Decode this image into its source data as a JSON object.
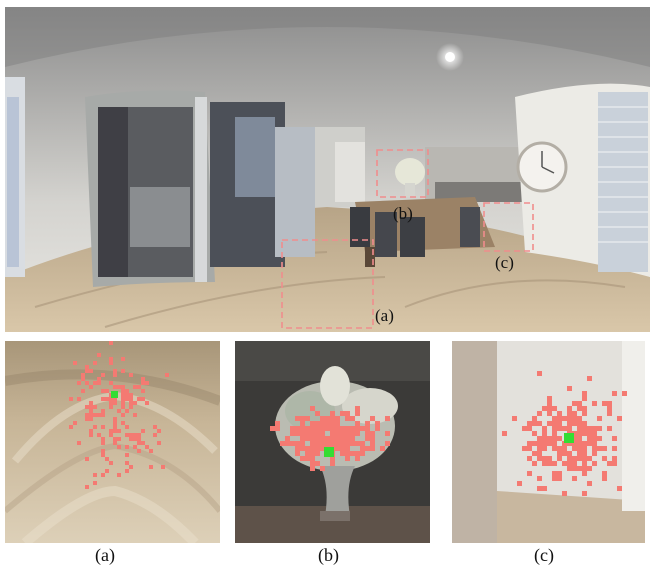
{
  "figure": {
    "panorama_labels": {
      "a": "(a)",
      "b": "(b)",
      "c": "(c)"
    },
    "subfigure_captions": [
      "(a)",
      "(b)",
      "(c)"
    ]
  },
  "colors": {
    "highlight_box": "#f08d8d",
    "scatter_points": "#f47a72",
    "center_point": "#33dd33",
    "floor": "#cdb99a",
    "wall": "#ecebe6"
  },
  "icons": [
    "pendant-light",
    "wall-clock",
    "flower-vase",
    "window-blinds",
    "sliding-door"
  ]
}
